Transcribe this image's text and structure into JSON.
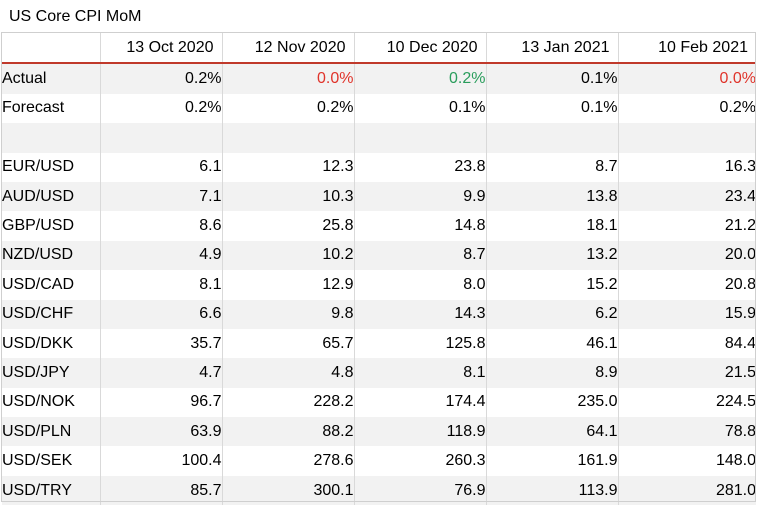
{
  "title": "US Core CPI MoM",
  "dates": [
    "13 Oct 2020",
    "12 Nov 2020",
    "10 Dec 2020",
    "13 Jan 2021",
    "10 Feb 2021"
  ],
  "actual": {
    "label": "Actual",
    "values": [
      "0.2%",
      "0.0%",
      "0.2%",
      "0.1%",
      "0.0%"
    ],
    "colors": [
      "black",
      "red",
      "green",
      "black",
      "red"
    ]
  },
  "forecast": {
    "label": "Forecast",
    "values": [
      "0.2%",
      "0.2%",
      "0.1%",
      "0.1%",
      "0.2%"
    ]
  },
  "pairs": [
    {
      "name": "EUR/USD",
      "values": [
        "6.1",
        "12.3",
        "23.8",
        "8.7",
        "16.3"
      ]
    },
    {
      "name": "AUD/USD",
      "values": [
        "7.1",
        "10.3",
        "9.9",
        "13.8",
        "23.4"
      ]
    },
    {
      "name": "GBP/USD",
      "values": [
        "8.6",
        "25.8",
        "14.8",
        "18.1",
        "21.2"
      ]
    },
    {
      "name": "NZD/USD",
      "values": [
        "4.9",
        "10.2",
        "8.7",
        "13.2",
        "20.0"
      ]
    },
    {
      "name": "USD/CAD",
      "values": [
        "8.1",
        "12.9",
        "8.0",
        "15.2",
        "20.8"
      ]
    },
    {
      "name": "USD/CHF",
      "values": [
        "6.6",
        "9.8",
        "14.3",
        "6.2",
        "15.9"
      ]
    },
    {
      "name": "USD/DKK",
      "values": [
        "35.7",
        "65.7",
        "125.8",
        "46.1",
        "84.4"
      ]
    },
    {
      "name": "USD/JPY",
      "values": [
        "4.7",
        "4.8",
        "8.1",
        "8.9",
        "21.5"
      ]
    },
    {
      "name": "USD/NOK",
      "values": [
        "96.7",
        "228.2",
        "174.4",
        "235.0",
        "224.5"
      ]
    },
    {
      "name": "USD/PLN",
      "values": [
        "63.9",
        "88.2",
        "118.9",
        "64.1",
        "78.8"
      ]
    },
    {
      "name": "USD/SEK",
      "values": [
        "100.4",
        "278.6",
        "260.3",
        "161.9",
        "148.0"
      ]
    },
    {
      "name": "USD/TRY",
      "values": [
        "85.7",
        "300.1",
        "76.9",
        "113.9",
        "281.0"
      ]
    }
  ]
}
